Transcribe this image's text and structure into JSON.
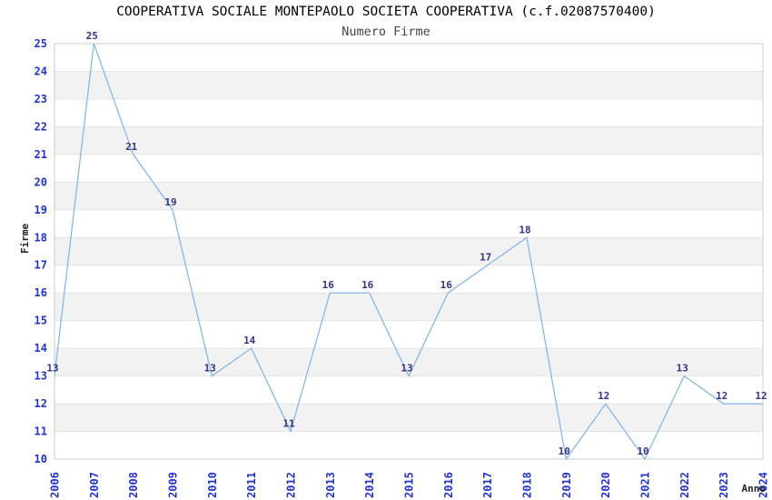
{
  "chart_data": {
    "type": "line",
    "title": "COOPERATIVA SOCIALE MONTEPAOLO SOCIETA COOPERATIVA (c.f.02087570400)",
    "subtitle": "Numero Firme",
    "xlabel": "Anno",
    "ylabel": "Firme",
    "x": [
      2006,
      2007,
      2008,
      2009,
      2010,
      2011,
      2012,
      2013,
      2014,
      2015,
      2016,
      2017,
      2018,
      2019,
      2020,
      2021,
      2022,
      2023,
      2024
    ],
    "series": [
      {
        "name": "Numero Firme",
        "values": [
          13,
          25,
          21,
          19,
          13,
          14,
          11,
          16,
          16,
          13,
          16,
          17,
          18,
          10,
          12,
          10,
          13,
          12,
          12
        ]
      }
    ],
    "xlim": [
      2006,
      2024
    ],
    "ylim": [
      10,
      25
    ],
    "y_tick_step": 1,
    "x_tick_labels_rotated_90": true,
    "point_labels_visible": true,
    "grid": "horizontal gridlines with alternating gray unit bands (odd-to-even rows shaded)",
    "legend": "none",
    "colors": {
      "line": "#7fb3e5",
      "tick_label": "#2233cc",
      "point_label": "#333388",
      "title": "#000000",
      "subtitle": "#444444",
      "axis_title": "#222222",
      "band": "#f2f2f2",
      "gridline": "#e4e4e4",
      "border": "#cccccc",
      "background": "#ffffff"
    }
  }
}
